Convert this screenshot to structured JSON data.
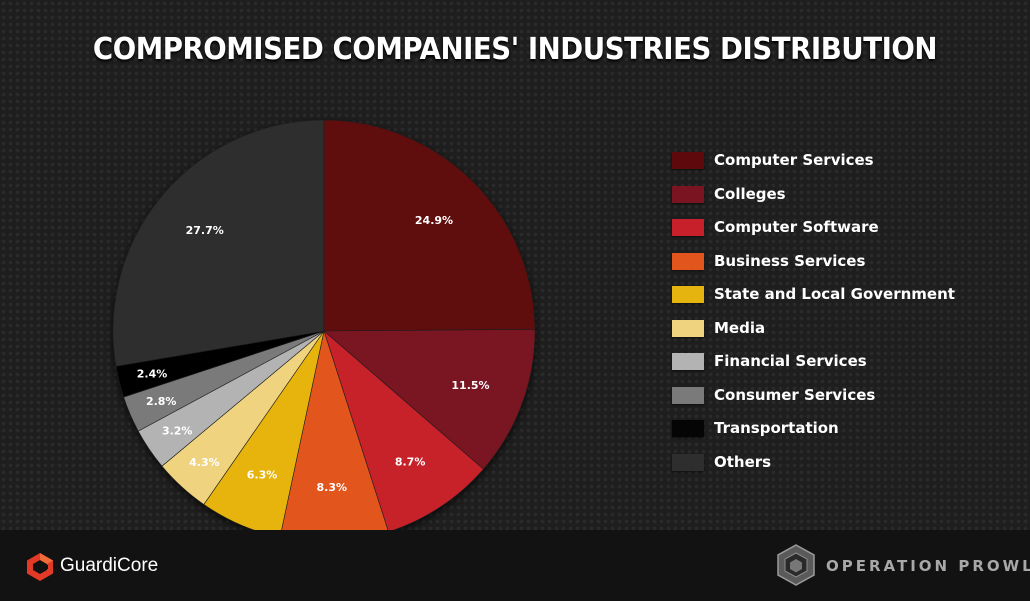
{
  "title": "COMPROMISED COMPANIES' INDUSTRIES DISTRIBUTION",
  "chart_data": {
    "type": "pie",
    "title": "COMPROMISED COMPANIES' INDUSTRIES DISTRIBUTION",
    "slices": [
      {
        "label": "Computer Services",
        "value": 24.9,
        "value_label": "24.9%",
        "color": "#5e0a0c"
      },
      {
        "label": "Colleges",
        "value": 11.5,
        "value_label": "11.5%",
        "color": "#7a1420"
      },
      {
        "label": "Computer Software",
        "value": 8.7,
        "value_label": "8.7%",
        "color": "#c7202a"
      },
      {
        "label": "Business Services",
        "value": 8.3,
        "value_label": "8.3%",
        "color": "#e2551d"
      },
      {
        "label": "State and Local Government",
        "value": 6.3,
        "value_label": "6.3%",
        "color": "#e6b40e"
      },
      {
        "label": "Media",
        "value": 4.3,
        "value_label": "4.3%",
        "color": "#f0d37e"
      },
      {
        "label": "Financial Services",
        "value": 3.2,
        "value_label": "3.2%",
        "color": "#b3b3b3"
      },
      {
        "label": "Consumer Services",
        "value": 2.8,
        "value_label": "2.8%",
        "color": "#7a7a7a"
      },
      {
        "label": "Transportation",
        "value": 2.4,
        "value_label": "2.4%",
        "color": "#050505"
      },
      {
        "label": "Others",
        "value": 27.7,
        "value_label": "27.7%",
        "color": "#2e2e2e"
      }
    ],
    "legend_position": "right"
  },
  "footer": {
    "left_brand": "GuardiCore",
    "right_brand": "OPERATION PROWLI"
  },
  "colors": {
    "background": "#1e1e1e",
    "footer_background": "#121212"
  },
  "icons": [
    "guardicore-logo-icon",
    "prowli-logo-icon"
  ]
}
